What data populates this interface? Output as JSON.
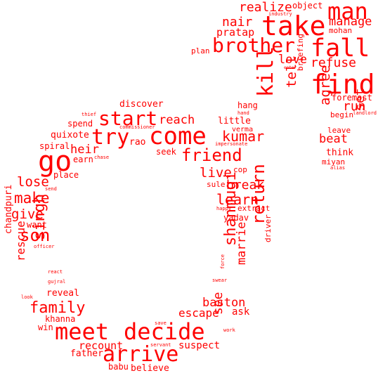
{
  "accent_color": "#ff0000",
  "words": [
    "take",
    "man",
    "fall",
    "brother",
    "find",
    "come",
    "go",
    "meet",
    "decide",
    "arrive",
    "kill",
    "start",
    "try",
    "friend",
    "son",
    "singh",
    "family",
    "return",
    "shanmugi",
    "kumar",
    "make",
    "lose",
    "give",
    "learn",
    "live",
    "break",
    "see",
    "marrie",
    "baston",
    "refuse",
    "realize",
    "manage",
    "nair",
    "pratap",
    "love",
    "tell",
    "run",
    "agree",
    "set",
    "beat",
    "reach",
    "heir",
    "rescue",
    "escape",
    "recount",
    "suspect",
    "ask",
    "father",
    "believe",
    "babu",
    "khanna",
    "win",
    "reveal",
    "chandpuri",
    "want",
    "spiral",
    "quixote",
    "spend",
    "discover",
    "hang",
    "little",
    "verma",
    "rao",
    "seek",
    "earn",
    "place",
    "yadav",
    "extract",
    "cop",
    "sule",
    "driver",
    "briefing",
    "object",
    "mohan",
    "plan",
    "think",
    "miyan",
    "leave",
    "begin",
    "foremost",
    "industry",
    "enter",
    "hand",
    "impersonate",
    "commissioner",
    "thief",
    "chase",
    "send",
    "alias",
    "landlord",
    "happy",
    "officer",
    "react",
    "gujral",
    "look",
    "force",
    "swear",
    "save",
    "servant",
    "work"
  ]
}
